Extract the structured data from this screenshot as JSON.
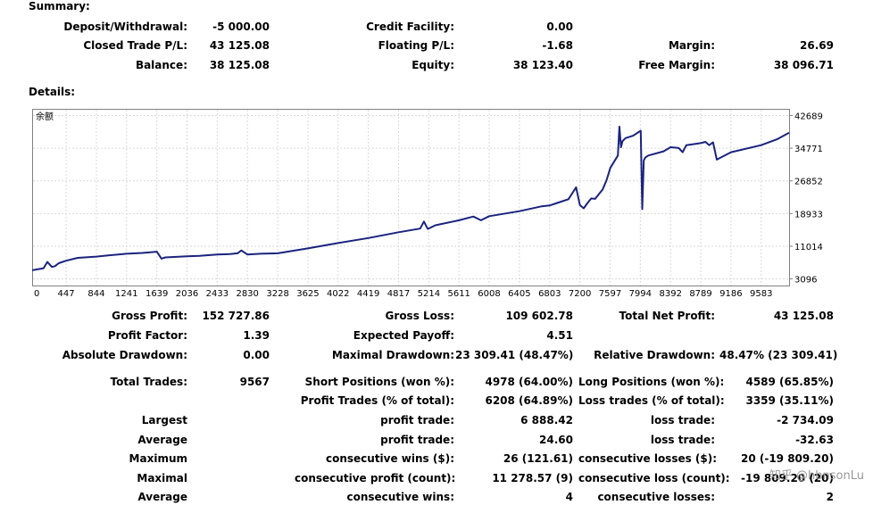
{
  "summary": {
    "title": "Summary:",
    "deposit_label": "Deposit/Withdrawal:",
    "deposit_value": "-5 000.00",
    "credit_label": "Credit Facility:",
    "credit_value": "0.00",
    "closed_label": "Closed Trade P/L:",
    "closed_value": "43 125.08",
    "floating_label": "Floating P/L:",
    "floating_value": "-1.68",
    "margin_label": "Margin:",
    "margin_value": "26.69",
    "balance_label": "Balance:",
    "balance_value": "38 125.08",
    "equity_label": "Equity:",
    "equity_value": "38 123.40",
    "free_margin_label": "Free Margin:",
    "free_margin_value": "38 096.71"
  },
  "details": {
    "title": "Details:"
  },
  "chart_data": {
    "type": "line",
    "title": "余额",
    "x_ticks": [
      "0",
      "447",
      "844",
      "1241",
      "1639",
      "2036",
      "2433",
      "2830",
      "3228",
      "3625",
      "4022",
      "4419",
      "4817",
      "5214",
      "5611",
      "6008",
      "6405",
      "6803",
      "7200",
      "7597",
      "7994",
      "8392",
      "8789",
      "9186",
      "9583"
    ],
    "y_ticks": [
      "42689",
      "34771",
      "26852",
      "18933",
      "11014",
      "3096"
    ],
    "xlim": [
      0,
      9950
    ],
    "ylim": [
      1500,
      44300
    ],
    "grid": true,
    "series": [
      {
        "color": "#1a237e",
        "x": [
          0,
          150,
          200,
          260,
          300,
          350,
          447,
          600,
          844,
          1000,
          1241,
          1450,
          1639,
          1700,
          1750,
          2036,
          2200,
          2433,
          2600,
          2700,
          2750,
          2830,
          3000,
          3228,
          3625,
          4022,
          4419,
          4817,
          5100,
          5150,
          5200,
          5300,
          5611,
          5800,
          5900,
          6008,
          6405,
          6700,
          6803,
          6900,
          7050,
          7150,
          7200,
          7250,
          7300,
          7350,
          7400,
          7500,
          7550,
          7600,
          7700,
          7720,
          7740,
          7760,
          7800,
          7900,
          8000,
          8020,
          8040,
          8060,
          8100,
          8300,
          8392,
          8500,
          8550,
          8600,
          8789,
          8850,
          8900,
          8950,
          9000,
          9186,
          9583,
          9800,
          9950
        ],
        "y": [
          5200,
          5700,
          7200,
          6000,
          6200,
          6900,
          7500,
          8200,
          8500,
          8800,
          9200,
          9400,
          9700,
          8000,
          8300,
          8600,
          8700,
          9000,
          9100,
          9300,
          10000,
          9000,
          9200,
          9300,
          10500,
          11800,
          13000,
          14400,
          15300,
          17000,
          15200,
          16100,
          17300,
          18200,
          17300,
          18300,
          19500,
          20700,
          20900,
          21500,
          22400,
          25300,
          21000,
          20200,
          21500,
          22600,
          22500,
          24800,
          27000,
          30000,
          33000,
          40000,
          35000,
          36500,
          37200,
          37800,
          39000,
          20000,
          31800,
          32500,
          33000,
          34000,
          35000,
          34800,
          33800,
          35500,
          36000,
          36300,
          35500,
          36200,
          32000,
          33800,
          35500,
          37000,
          38500
        ]
      }
    ]
  },
  "stats": {
    "gross_profit_label": "Gross Profit:",
    "gross_profit_value": "152 727.86",
    "gross_loss_label": "Gross Loss:",
    "gross_loss_value": "109 602.78",
    "net_profit_label": "Total Net Profit:",
    "net_profit_value": "43 125.08",
    "profit_factor_label": "Profit Factor:",
    "profit_factor_value": "1.39",
    "expected_payoff_label": "Expected Payoff:",
    "expected_payoff_value": "4.51",
    "abs_drawdown_label": "Absolute Drawdown:",
    "abs_drawdown_value": "0.00",
    "max_drawdown_label": "Maximal Drawdown:",
    "max_drawdown_value": "23 309.41 (48.47%)",
    "rel_drawdown_label": "Relative Drawdown:",
    "rel_drawdown_value": "48.47% (23 309.41)",
    "total_trades_label": "Total Trades:",
    "total_trades_value": "9567",
    "short_label": "Short Positions (won %):",
    "short_value": "4978 (64.00%)",
    "long_label": "Long Positions (won %):",
    "long_value": "4589 (65.85%)",
    "profit_trades_label": "Profit Trades (% of total):",
    "profit_trades_value": "6208 (64.89%)",
    "loss_trades_label": "Loss trades (% of total):",
    "loss_trades_value": "3359 (35.11%)",
    "largest_label": "Largest",
    "largest_profit_label": "profit trade:",
    "largest_profit_value": "6 888.42",
    "largest_loss_label": "loss trade:",
    "largest_loss_value": "-2 734.09",
    "average_label": "Average",
    "average_profit_label": "profit trade:",
    "average_profit_value": "24.60",
    "average_loss_label": "loss trade:",
    "average_loss_value": "-32.63",
    "maximum_label": "Maximum",
    "max_wins_label": "consecutive wins ($):",
    "max_wins_value": "26 (121.61)",
    "max_losses_label": "consecutive losses ($):",
    "max_losses_value": "20 (-19 809.20)",
    "maximal_label": "Maximal",
    "maximal_profit_label": "consecutive profit (count):",
    "maximal_profit_value": "11 278.57 (9)",
    "maximal_loss_label": "consecutive loss (count):",
    "maximal_loss_value": "-19 809.20 (20)",
    "average2_label": "Average",
    "avg_wins_label": "consecutive wins:",
    "avg_wins_value": "4",
    "avg_losses_label": "consecutive losses:",
    "avg_losses_value": "2"
  },
  "watermark": "知乎 @hbnsonLu"
}
